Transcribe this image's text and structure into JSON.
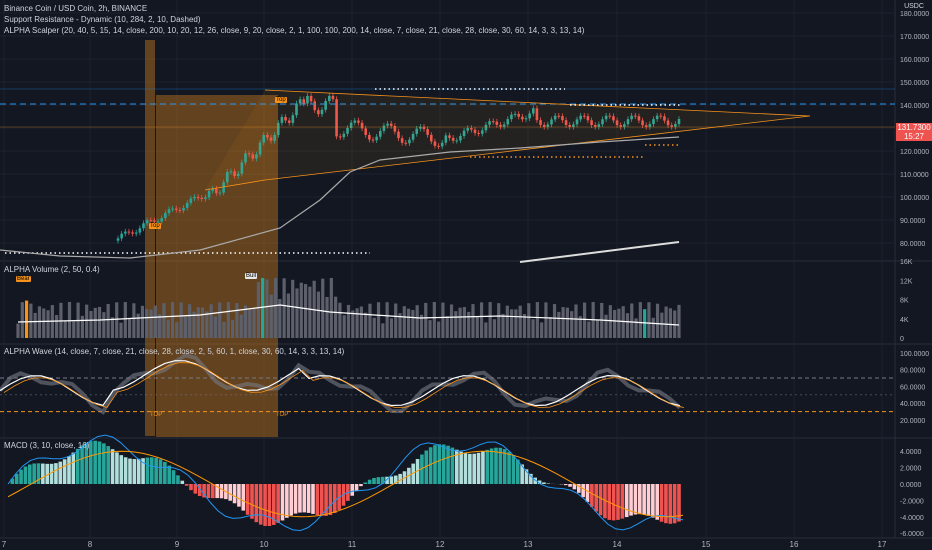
{
  "main_legend": {
    "title": "Binance Coin / USD Coin, 2h, BINANCE",
    "indicator1": "Support Resistance - Dynamic (10, 284, 2, 10, Dashed)",
    "indicator2": "ALPHA Scalper (20, 40, 5, 15, 14, close, 200, 10, 20, 12, 26, close, 9, 20, close, 2, 1, 100, 100, 200, 14, close, 7, close, 21, close, 28, close, 30, 60, 14, 3, 3, 13, 14)"
  },
  "volume_legend": "ALPHA Volume (2, 50, 0.4)",
  "wave_legend": "ALPHA Wave (14, close, 7, close, 21, close, 28, close, 2, 5, 60, 1, close, 30, 60, 14, 3, 3, 13, 14)",
  "macd_legend": "MACD (3, 10, close, 16)",
  "currency": "USDC",
  "last_price": "131.7300",
  "countdown": "15:27",
  "labels": {
    "bear": "Bear",
    "bull": "Bull",
    "top": "Top",
    "top_x": "TOP"
  },
  "colors": {
    "up": "#26a69a",
    "down": "#ef5350",
    "accent": "#f7931a",
    "volume": "#5d606b",
    "grid": "#1e222d",
    "text": "#b2b5be"
  },
  "price_axis": [
    "180.0000",
    "170.0000",
    "160.0000",
    "150.0000",
    "140.0000",
    "130.0000",
    "120.0000",
    "110.0000",
    "100.0000",
    "90.0000",
    "80.0000"
  ],
  "volume_axis": [
    "16K",
    "12K",
    "8K",
    "4K",
    "0"
  ],
  "wave_axis": [
    "100.0000",
    "80.0000",
    "60.0000",
    "40.0000",
    "20.0000"
  ],
  "macd_axis": [
    "4.0000",
    "2.0000",
    "0.0000",
    "-2.0000",
    "-4.0000",
    "-6.0000"
  ],
  "time_axis": [
    "7",
    "8",
    "9",
    "10",
    "11",
    "12",
    "13",
    "14",
    "15",
    "16",
    "17"
  ]
}
